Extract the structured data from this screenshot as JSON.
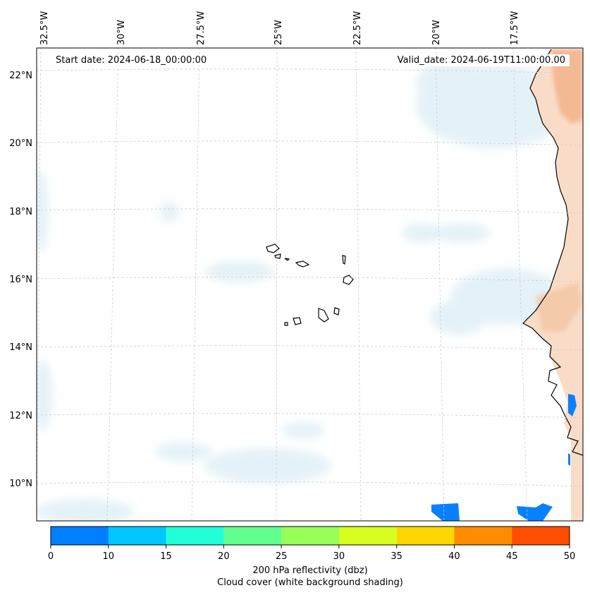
{
  "map": {
    "start_date": "Start date: 2024-06-18_00:00:00",
    "valid_date": "Valid_date: 2024-06-19T11:00:00.00",
    "lon_labels": [
      "32.5°W",
      "30°W",
      "27.5°W",
      "25°W",
      "22.5°W",
      "20°W",
      "17.5°W"
    ],
    "lat_labels": [
      "22°N",
      "20°N",
      "18°N",
      "16°N",
      "14°N",
      "12°N",
      "10°N"
    ],
    "colors": {
      "land": "#f8d9c3",
      "land_deep": "#f4b48c",
      "cloud": "#d3eaf2",
      "coastline": "#000000",
      "reflectivity_10": "#0880ff"
    }
  },
  "colorbar": {
    "ticks": [
      "0",
      "10",
      "15",
      "20",
      "25",
      "30",
      "35",
      "40",
      "45",
      "50"
    ],
    "colors": [
      "#0080ff",
      "#00c8ff",
      "#20ffd8",
      "#60ff90",
      "#98ff58",
      "#d8ff20",
      "#ffd700",
      "#ff8c00",
      "#ff4e00"
    ],
    "label_line1": "200 hPa reflectivity (dbz)",
    "label_line2": "Cloud cover (white background shading)"
  }
}
